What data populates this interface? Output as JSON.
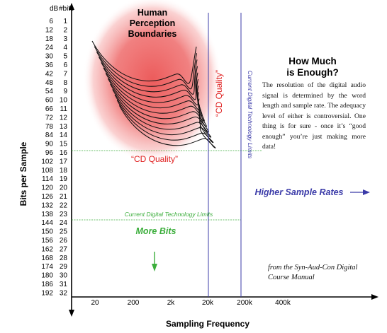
{
  "header": {
    "db_col": "dB",
    "bits_col": "#bits"
  },
  "y_rows": [
    {
      "db": "6",
      "bits": "1"
    },
    {
      "db": "12",
      "bits": "2"
    },
    {
      "db": "18",
      "bits": "3"
    },
    {
      "db": "24",
      "bits": "4"
    },
    {
      "db": "30",
      "bits": "5"
    },
    {
      "db": "36",
      "bits": "6"
    },
    {
      "db": "42",
      "bits": "7"
    },
    {
      "db": "48",
      "bits": "8"
    },
    {
      "db": "54",
      "bits": "9"
    },
    {
      "db": "60",
      "bits": "10"
    },
    {
      "db": "66",
      "bits": "11"
    },
    {
      "db": "72",
      "bits": "12"
    },
    {
      "db": "78",
      "bits": "13"
    },
    {
      "db": "84",
      "bits": "14"
    },
    {
      "db": "90",
      "bits": "15"
    },
    {
      "db": "96",
      "bits": "16"
    },
    {
      "db": "102",
      "bits": "17"
    },
    {
      "db": "108",
      "bits": "18"
    },
    {
      "db": "114",
      "bits": "19"
    },
    {
      "db": "120",
      "bits": "20"
    },
    {
      "db": "126",
      "bits": "21"
    },
    {
      "db": "132",
      "bits": "22"
    },
    {
      "db": "138",
      "bits": "23"
    },
    {
      "db": "144",
      "bits": "24"
    },
    {
      "db": "150",
      "bits": "25"
    },
    {
      "db": "156",
      "bits": "26"
    },
    {
      "db": "162",
      "bits": "27"
    },
    {
      "db": "168",
      "bits": "28"
    },
    {
      "db": "174",
      "bits": "29"
    },
    {
      "db": "180",
      "bits": "30"
    },
    {
      "db": "186",
      "bits": "31"
    },
    {
      "db": "192",
      "bits": "32"
    }
  ],
  "x_ticks": [
    "20",
    "200",
    "2k",
    "20k",
    "200k",
    "400k"
  ],
  "x_axis_label": "Sampling Frequency",
  "y_axis_label": "Bits per Sample",
  "human_title": [
    "Human",
    "Perception",
    "Boundaries"
  ],
  "cd_quality_h": "“CD Quality”",
  "cd_quality_v": "“CD Quality”",
  "current_limits_h": "Current Digital Technology Limits",
  "current_limits_v": "Current Digital Technology Limits",
  "higher_rates": "Higher Sample Rates",
  "more_bits": "More Bits",
  "how_much": [
    "How Much",
    "is Enough?"
  ],
  "description": "The resolution of the digital audio signal is determined by the word length and sample rate. The adequacy level of either is controversial. One thing is for sure - once it’s “good enough” you’re just making more data!",
  "credit": [
    "from the Syn-Aud-Con Digital",
    "Course Manual"
  ],
  "colors": {
    "blob": "#f07878",
    "limit_line": "#3c3ca8",
    "cd_text": "#e02020",
    "green": "#3cae3c",
    "blue_text": "#3a3aa8"
  }
}
